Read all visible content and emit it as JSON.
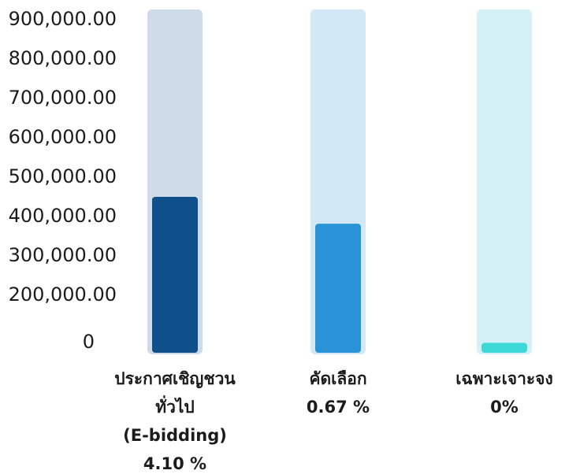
{
  "chart_data": {
    "type": "bar",
    "ylim": [
      0,
      900000
    ],
    "y_tick_labels": [
      "900,000.00",
      "800,000.00",
      "700,000.00",
      "600,000.00",
      "500,000.00",
      "400,000.00",
      "300,000.00",
      "200,000.00",
      "0"
    ],
    "categories": [
      {
        "label_lines": [
          "ประกาศเชิญชวน",
          "ทั่วไป",
          "(E-bidding)"
        ],
        "pct_label": "4.10 %",
        "value": 410000,
        "bar_color": "#10508a",
        "track_color": "#cfdbe8"
      },
      {
        "label_lines": [
          "คัดเลือก"
        ],
        "pct_label": "0.67 %",
        "value": 340000,
        "bar_color": "#2a93d8",
        "track_color": "#d3e8f6"
      },
      {
        "label_lines": [
          "เฉพาะเจาะจง"
        ],
        "pct_label": "0%",
        "value": 30000,
        "bar_color": "#3cd9d6",
        "track_color": "#d4f1f8"
      }
    ],
    "grid": false,
    "legend": "none"
  }
}
